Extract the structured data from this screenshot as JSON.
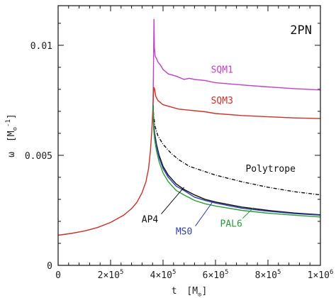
{
  "chart_data": {
    "type": "line",
    "annotation": "2PN",
    "xlabel": {
      "main": "t",
      "unit": "M",
      "unit_sub": "⊙"
    },
    "ylabel": {
      "main": "ω",
      "unit": "M",
      "unit_sub": "⊙",
      "unit_sup": "-1"
    },
    "xlim": [
      0,
      1000000
    ],
    "ylim": [
      0,
      0.0118
    ],
    "x_ticks": [
      {
        "value": 0,
        "label": "0"
      },
      {
        "value": 200000,
        "label": "2×10",
        "exp": "5"
      },
      {
        "value": 400000,
        "label": "4×10",
        "exp": "5"
      },
      {
        "value": 600000,
        "label": "6×10",
        "exp": "5"
      },
      {
        "value": 800000,
        "label": "8×10",
        "exp": "5"
      },
      {
        "value": 1000000,
        "label": "1×10",
        "exp": "6"
      }
    ],
    "y_ticks": [
      {
        "value": 0,
        "label": "0"
      },
      {
        "value": 0.005,
        "label": "0.005"
      },
      {
        "value": 0.01,
        "label": "0.01"
      }
    ],
    "inspiral": {
      "color": "#c8322c",
      "points": [
        [
          0,
          0.00137
        ],
        [
          50000,
          0.00145
        ],
        [
          100000,
          0.00156
        ],
        [
          150000,
          0.00172
        ],
        [
          200000,
          0.00195
        ],
        [
          250000,
          0.00228
        ],
        [
          280000,
          0.00258
        ],
        [
          300000,
          0.00286
        ],
        [
          320000,
          0.0033
        ],
        [
          335000,
          0.0038
        ],
        [
          345000,
          0.0044
        ],
        [
          352000,
          0.0052
        ],
        [
          357000,
          0.0061
        ],
        [
          360000,
          0.0068
        ],
        [
          362000,
          0.0073
        ]
      ]
    },
    "series": [
      {
        "name": "SQM1",
        "color": "#c040c8",
        "dash": "",
        "points": [
          [
            362000,
            0.0073
          ],
          [
            364000,
            0.0095
          ],
          [
            365500,
            0.0112
          ],
          [
            367000,
            0.0099
          ],
          [
            370000,
            0.0095
          ],
          [
            375000,
            0.0094
          ],
          [
            380000,
            0.00925
          ],
          [
            390000,
            0.0091
          ],
          [
            400000,
            0.0089
          ],
          [
            420000,
            0.0087
          ],
          [
            450000,
            0.0086
          ],
          [
            480000,
            0.00845
          ],
          [
            500000,
            0.0085
          ],
          [
            520000,
            0.00845
          ],
          [
            560000,
            0.0084
          ],
          [
            600000,
            0.0083
          ],
          [
            700000,
            0.0082
          ],
          [
            800000,
            0.00811
          ],
          [
            900000,
            0.00803
          ],
          [
            1000000,
            0.00797
          ]
        ]
      },
      {
        "name": "SQM3",
        "color": "#c8322c",
        "dash": "",
        "points": [
          [
            362000,
            0.0073
          ],
          [
            365000,
            0.0081
          ],
          [
            368000,
            0.008
          ],
          [
            372000,
            0.0077
          ],
          [
            380000,
            0.0075
          ],
          [
            400000,
            0.0073
          ],
          [
            430000,
            0.0072
          ],
          [
            460000,
            0.0071
          ],
          [
            500000,
            0.00705
          ],
          [
            560000,
            0.00698
          ],
          [
            600000,
            0.0069
          ],
          [
            700000,
            0.00681
          ],
          [
            800000,
            0.00675
          ],
          [
            900000,
            0.0067
          ],
          [
            1000000,
            0.00667
          ]
        ]
      },
      {
        "name": "Polytrope",
        "color": "#111111",
        "dash": "5,2,1,2",
        "points": [
          [
            362000,
            0.0073
          ],
          [
            364000,
            0.0068
          ],
          [
            370000,
            0.0063
          ],
          [
            380000,
            0.0059
          ],
          [
            400000,
            0.0055
          ],
          [
            430000,
            0.0051
          ],
          [
            460000,
            0.0048
          ],
          [
            500000,
            0.0045
          ],
          [
            550000,
            0.0043
          ],
          [
            600000,
            0.0041
          ],
          [
            700000,
            0.0038
          ],
          [
            800000,
            0.00355
          ],
          [
            900000,
            0.00335
          ],
          [
            1000000,
            0.0032
          ]
        ]
      },
      {
        "name": "AP4",
        "color": "#111111",
        "dash": "",
        "points": [
          [
            362000,
            0.0073
          ],
          [
            364000,
            0.0065
          ],
          [
            368000,
            0.006
          ],
          [
            375000,
            0.0055
          ],
          [
            385000,
            0.005
          ],
          [
            400000,
            0.0045
          ],
          [
            420000,
            0.0041
          ],
          [
            450000,
            0.0037
          ],
          [
            480000,
            0.00345
          ],
          [
            520000,
            0.0032
          ],
          [
            560000,
            0.003
          ],
          [
            600000,
            0.00288
          ],
          [
            700000,
            0.00265
          ],
          [
            800000,
            0.0025
          ],
          [
            900000,
            0.00238
          ],
          [
            1000000,
            0.0023
          ]
        ]
      },
      {
        "name": "MS0",
        "color": "#2f3fa8",
        "dash": "",
        "points": [
          [
            362000,
            0.0073
          ],
          [
            364000,
            0.0064
          ],
          [
            368000,
            0.0059
          ],
          [
            375000,
            0.0054
          ],
          [
            385000,
            0.0049
          ],
          [
            400000,
            0.0044
          ],
          [
            420000,
            0.004
          ],
          [
            450000,
            0.0036
          ],
          [
            480000,
            0.0034
          ],
          [
            520000,
            0.0031
          ],
          [
            560000,
            0.00295
          ],
          [
            600000,
            0.00283
          ],
          [
            700000,
            0.0026
          ],
          [
            800000,
            0.00246
          ],
          [
            900000,
            0.00235
          ],
          [
            1000000,
            0.00228
          ]
        ]
      },
      {
        "name": "PAL6",
        "color": "#2d9a3a",
        "dash": "",
        "points": [
          [
            362000,
            0.0073
          ],
          [
            364000,
            0.0062
          ],
          [
            368000,
            0.0057
          ],
          [
            375000,
            0.0052
          ],
          [
            385000,
            0.0047
          ],
          [
            400000,
            0.0042
          ],
          [
            420000,
            0.0038
          ],
          [
            450000,
            0.0034
          ],
          [
            480000,
            0.0032
          ],
          [
            520000,
            0.00295
          ],
          [
            560000,
            0.0028
          ],
          [
            600000,
            0.0027
          ],
          [
            700000,
            0.0025
          ],
          [
            800000,
            0.00237
          ],
          [
            900000,
            0.00228
          ],
          [
            1000000,
            0.0022
          ]
        ]
      }
    ],
    "labels": [
      {
        "text": "SQM1",
        "color": "#c040c8",
        "at": [
          625000,
          0.00875
        ],
        "pointer": false
      },
      {
        "text": "SQM3",
        "color": "#c8322c",
        "at": [
          625000,
          0.00735
        ],
        "pointer": false
      },
      {
        "text": "Polytrope",
        "color": "#111111",
        "at": [
          810000,
          0.00425
        ],
        "pointer": false
      },
      {
        "text": "AP4",
        "color": "#111111",
        "at": [
          350000,
          0.00195
        ],
        "pointer": true,
        "to": [
          480000,
          0.00355
        ]
      },
      {
        "text": "MS0",
        "color": "#2f3fa8",
        "at": [
          480000,
          0.0014
        ],
        "pointer": true,
        "to": [
          590000,
          0.0029
        ]
      },
      {
        "text": "PAL6",
        "color": "#2d9a3a",
        "at": [
          660000,
          0.00175
        ],
        "pointer": true,
        "to": [
          745000,
          0.00262
        ]
      }
    ]
  }
}
